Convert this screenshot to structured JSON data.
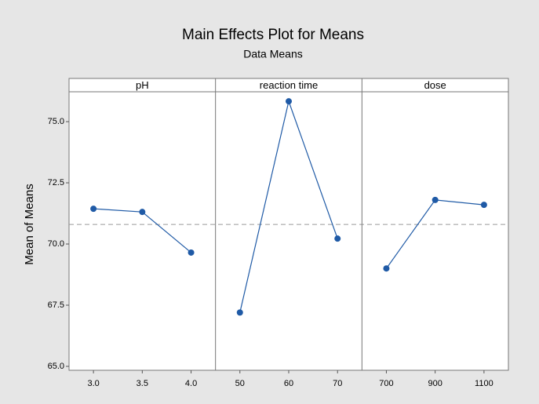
{
  "chart_data": {
    "type": "line",
    "title": "Main Effects Plot for Means",
    "subtitle": "Data Means",
    "y_label": "Mean of Means",
    "ylim": [
      64.84,
      76.22
    ],
    "yticks": [
      {
        "value": 65,
        "label": "65.0"
      },
      {
        "value": 67.5,
        "label": "67.5"
      },
      {
        "value": 70,
        "label": "70.0"
      },
      {
        "value": 72.5,
        "label": "72.5"
      },
      {
        "value": 75,
        "label": "75.0"
      }
    ],
    "reference_line": 70.8,
    "color": "#1f5aa6",
    "panels": [
      {
        "name": "pH",
        "categories": [
          "3.0",
          "3.5",
          "4.0"
        ],
        "values": [
          71.44,
          71.31,
          69.65
        ]
      },
      {
        "name": "reaction time",
        "categories": [
          "50",
          "60",
          "70"
        ],
        "values": [
          67.2,
          75.83,
          70.22
        ]
      },
      {
        "name": "dose",
        "categories": [
          "700",
          "900",
          "1100"
        ],
        "values": [
          69.0,
          71.8,
          71.6
        ]
      }
    ]
  }
}
